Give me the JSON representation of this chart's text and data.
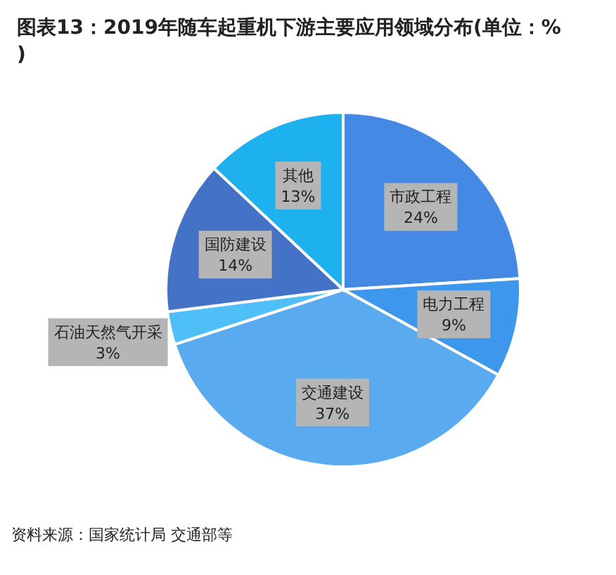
{
  "chart_data": {
    "type": "pie",
    "title": "图表13：2019年随车起重机下游主要应用领域分布(单位：%)",
    "categories": [
      "市政工程",
      "电力工程",
      "交通建设",
      "石油天然气开采",
      "国防建设",
      "其他"
    ],
    "values": [
      24,
      9,
      37,
      3,
      14,
      13
    ],
    "colors": [
      "#4489e3",
      "#3d97ec",
      "#5aaaf0",
      "#4fc0f7",
      "#4472c6",
      "#1eb1f0"
    ],
    "value_labels": [
      "24%",
      "9%",
      "37%",
      "3%",
      "14%",
      "13%"
    ],
    "annotations": [
      "资料来源：国家统计局 交通部等"
    ]
  }
}
